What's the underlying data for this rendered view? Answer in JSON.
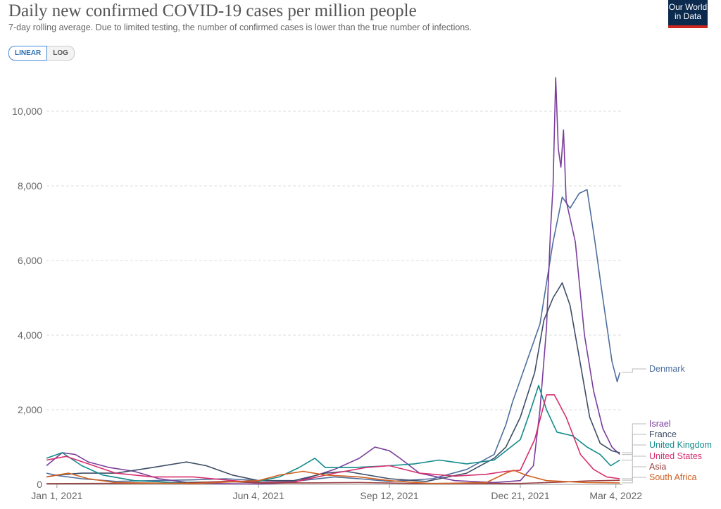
{
  "header": {
    "title": "Daily new confirmed COVID-19 cases per million people",
    "subtitle": "7-day rolling average. Due to limited testing, the number of confirmed cases is lower than the true number of infections.",
    "logo_line1": "Our World",
    "logo_line2": "in Data"
  },
  "scale_toggle": {
    "linear_label": "LINEAR",
    "log_label": "LOG",
    "selected": "LINEAR"
  },
  "chart_data": {
    "type": "line",
    "title": "Daily new confirmed COVID-19 cases per million people",
    "xlabel": "",
    "ylabel": "",
    "x_ticks": [
      "Jan 1, 2021",
      "Jun 4, 2021",
      "Sep 12, 2021",
      "Dec 21, 2021",
      "Mar 4, 2022"
    ],
    "y_ticks": [
      0,
      2000,
      4000,
      6000,
      8000,
      10000
    ],
    "y_tick_labels": [
      "0",
      "2,000",
      "4,000",
      "6,000",
      "8,000",
      "10,000"
    ],
    "ylim": [
      0,
      11000
    ],
    "xlim": [
      "2020-12-24",
      "2022-03-09"
    ],
    "grid": true,
    "legend_placement": "right end labels",
    "series": [
      {
        "name": "Denmark",
        "color": "#4e6e9e",
        "points": [
          [
            "2020-12-24",
            300
          ],
          [
            "2021-01-01",
            240
          ],
          [
            "2021-01-20",
            150
          ],
          [
            "2021-02-15",
            80
          ],
          [
            "2021-03-15",
            100
          ],
          [
            "2021-04-15",
            120
          ],
          [
            "2021-05-10",
            150
          ],
          [
            "2021-06-04",
            100
          ],
          [
            "2021-07-01",
            80
          ],
          [
            "2021-08-01",
            200
          ],
          [
            "2021-08-20",
            150
          ],
          [
            "2021-09-12",
            80
          ],
          [
            "2021-10-15",
            150
          ],
          [
            "2021-11-10",
            400
          ],
          [
            "2021-12-01",
            800
          ],
          [
            "2021-12-10",
            1600
          ],
          [
            "2021-12-15",
            2200
          ],
          [
            "2021-12-21",
            2800
          ],
          [
            "2021-12-28",
            3500
          ],
          [
            "2022-01-05",
            4300
          ],
          [
            "2022-01-15",
            6500
          ],
          [
            "2022-01-22",
            7700
          ],
          [
            "2022-01-28",
            7400
          ],
          [
            "2022-02-04",
            7800
          ],
          [
            "2022-02-10",
            7900
          ],
          [
            "2022-02-16",
            6500
          ],
          [
            "2022-02-22",
            5000
          ],
          [
            "2022-03-01",
            3300
          ],
          [
            "2022-03-05",
            2750
          ],
          [
            "2022-03-07",
            3000
          ]
        ]
      },
      {
        "name": "Israel",
        "color": "#7a3e9d",
        "points": [
          [
            "2020-12-24",
            500
          ],
          [
            "2021-01-05",
            850
          ],
          [
            "2021-01-15",
            800
          ],
          [
            "2021-01-25",
            600
          ],
          [
            "2021-02-10",
            450
          ],
          [
            "2021-03-01",
            350
          ],
          [
            "2021-03-20",
            150
          ],
          [
            "2021-04-15",
            30
          ],
          [
            "2021-06-04",
            10
          ],
          [
            "2021-07-01",
            50
          ],
          [
            "2021-08-01",
            400
          ],
          [
            "2021-08-20",
            700
          ],
          [
            "2021-09-01",
            1000
          ],
          [
            "2021-09-12",
            900
          ],
          [
            "2021-09-20",
            700
          ],
          [
            "2021-10-05",
            300
          ],
          [
            "2021-11-01",
            100
          ],
          [
            "2021-12-01",
            50
          ],
          [
            "2021-12-21",
            100
          ],
          [
            "2021-12-31",
            500
          ],
          [
            "2022-01-05",
            2000
          ],
          [
            "2022-01-10",
            4200
          ],
          [
            "2022-01-13",
            6800
          ],
          [
            "2022-01-15",
            8000
          ],
          [
            "2022-01-17",
            10900
          ],
          [
            "2022-01-19",
            9000
          ],
          [
            "2022-01-21",
            8500
          ],
          [
            "2022-01-23",
            9500
          ],
          [
            "2022-01-25",
            7600
          ],
          [
            "2022-02-01",
            6500
          ],
          [
            "2022-02-08",
            4000
          ],
          [
            "2022-02-15",
            2500
          ],
          [
            "2022-02-22",
            1500
          ],
          [
            "2022-03-01",
            1000
          ],
          [
            "2022-03-07",
            800
          ]
        ]
      },
      {
        "name": "France",
        "color": "#3e4d66",
        "points": [
          [
            "2020-12-24",
            200
          ],
          [
            "2021-01-01",
            250
          ],
          [
            "2021-01-20",
            300
          ],
          [
            "2021-02-15",
            300
          ],
          [
            "2021-03-15",
            450
          ],
          [
            "2021-04-10",
            600
          ],
          [
            "2021-04-25",
            500
          ],
          [
            "2021-05-15",
            250
          ],
          [
            "2021-06-04",
            100
          ],
          [
            "2021-07-01",
            100
          ],
          [
            "2021-07-25",
            300
          ],
          [
            "2021-08-10",
            350
          ],
          [
            "2021-09-12",
            150
          ],
          [
            "2021-10-10",
            80
          ],
          [
            "2021-11-10",
            300
          ],
          [
            "2021-12-01",
            700
          ],
          [
            "2021-12-10",
            1000
          ],
          [
            "2021-12-21",
            1800
          ],
          [
            "2022-01-01",
            3000
          ],
          [
            "2022-01-08",
            4400
          ],
          [
            "2022-01-15",
            5000
          ],
          [
            "2022-01-22",
            5400
          ],
          [
            "2022-01-28",
            4800
          ],
          [
            "2022-02-04",
            3400
          ],
          [
            "2022-02-12",
            1800
          ],
          [
            "2022-02-20",
            1100
          ],
          [
            "2022-03-01",
            900
          ],
          [
            "2022-03-07",
            850
          ]
        ]
      },
      {
        "name": "United Kingdom",
        "color": "#148b8b",
        "points": [
          [
            "2020-12-24",
            700
          ],
          [
            "2021-01-05",
            850
          ],
          [
            "2021-01-20",
            500
          ],
          [
            "2021-02-05",
            250
          ],
          [
            "2021-03-01",
            100
          ],
          [
            "2021-04-01",
            50
          ],
          [
            "2021-06-04",
            80
          ],
          [
            "2021-06-20",
            200
          ],
          [
            "2021-07-05",
            450
          ],
          [
            "2021-07-17",
            700
          ],
          [
            "2021-07-25",
            450
          ],
          [
            "2021-08-15",
            450
          ],
          [
            "2021-09-12",
            500
          ],
          [
            "2021-10-01",
            550
          ],
          [
            "2021-10-20",
            650
          ],
          [
            "2021-11-10",
            550
          ],
          [
            "2021-12-01",
            650
          ],
          [
            "2021-12-21",
            1200
          ],
          [
            "2021-12-28",
            1900
          ],
          [
            "2022-01-04",
            2650
          ],
          [
            "2022-01-10",
            2000
          ],
          [
            "2022-01-18",
            1400
          ],
          [
            "2022-01-30",
            1300
          ],
          [
            "2022-02-10",
            1000
          ],
          [
            "2022-02-20",
            800
          ],
          [
            "2022-02-28",
            500
          ],
          [
            "2022-03-07",
            650
          ]
        ]
      },
      {
        "name": "United States",
        "color": "#d62f6e",
        "points": [
          [
            "2020-12-24",
            650
          ],
          [
            "2021-01-08",
            750
          ],
          [
            "2021-01-25",
            550
          ],
          [
            "2021-02-15",
            300
          ],
          [
            "2021-03-15",
            200
          ],
          [
            "2021-04-15",
            200
          ],
          [
            "2021-05-15",
            100
          ],
          [
            "2021-06-04",
            50
          ],
          [
            "2021-07-01",
            60
          ],
          [
            "2021-08-01",
            300
          ],
          [
            "2021-08-25",
            450
          ],
          [
            "2021-09-12",
            500
          ],
          [
            "2021-10-05",
            300
          ],
          [
            "2021-11-01",
            220
          ],
          [
            "2021-11-25",
            270
          ],
          [
            "2021-12-10",
            350
          ],
          [
            "2021-12-21",
            380
          ],
          [
            "2022-01-01",
            1200
          ],
          [
            "2022-01-10",
            2400
          ],
          [
            "2022-01-16",
            2400
          ],
          [
            "2022-01-25",
            1800
          ],
          [
            "2022-02-05",
            800
          ],
          [
            "2022-02-15",
            400
          ],
          [
            "2022-02-25",
            200
          ],
          [
            "2022-03-07",
            150
          ]
        ]
      },
      {
        "name": "Asia",
        "color": "#9b3f3f",
        "points": [
          [
            "2020-12-24",
            20
          ],
          [
            "2021-04-01",
            30
          ],
          [
            "2021-05-10",
            80
          ],
          [
            "2021-06-04",
            40
          ],
          [
            "2021-07-15",
            40
          ],
          [
            "2021-08-20",
            50
          ],
          [
            "2021-10-01",
            25
          ],
          [
            "2021-12-21",
            25
          ],
          [
            "2022-01-20",
            60
          ],
          [
            "2022-02-10",
            90
          ],
          [
            "2022-03-07",
            110
          ]
        ]
      },
      {
        "name": "South Africa",
        "color": "#d1601f",
        "points": [
          [
            "2020-12-24",
            200
          ],
          [
            "2021-01-10",
            300
          ],
          [
            "2021-01-25",
            150
          ],
          [
            "2021-02-15",
            50
          ],
          [
            "2021-04-15",
            20
          ],
          [
            "2021-06-04",
            100
          ],
          [
            "2021-06-20",
            250
          ],
          [
            "2021-07-08",
            350
          ],
          [
            "2021-07-25",
            250
          ],
          [
            "2021-08-20",
            200
          ],
          [
            "2021-09-12",
            100
          ],
          [
            "2021-10-15",
            20
          ],
          [
            "2021-11-25",
            50
          ],
          [
            "2021-12-10",
            300
          ],
          [
            "2021-12-16",
            380
          ],
          [
            "2021-12-25",
            250
          ],
          [
            "2022-01-10",
            100
          ],
          [
            "2022-02-10",
            50
          ],
          [
            "2022-03-07",
            40
          ]
        ]
      }
    ]
  }
}
